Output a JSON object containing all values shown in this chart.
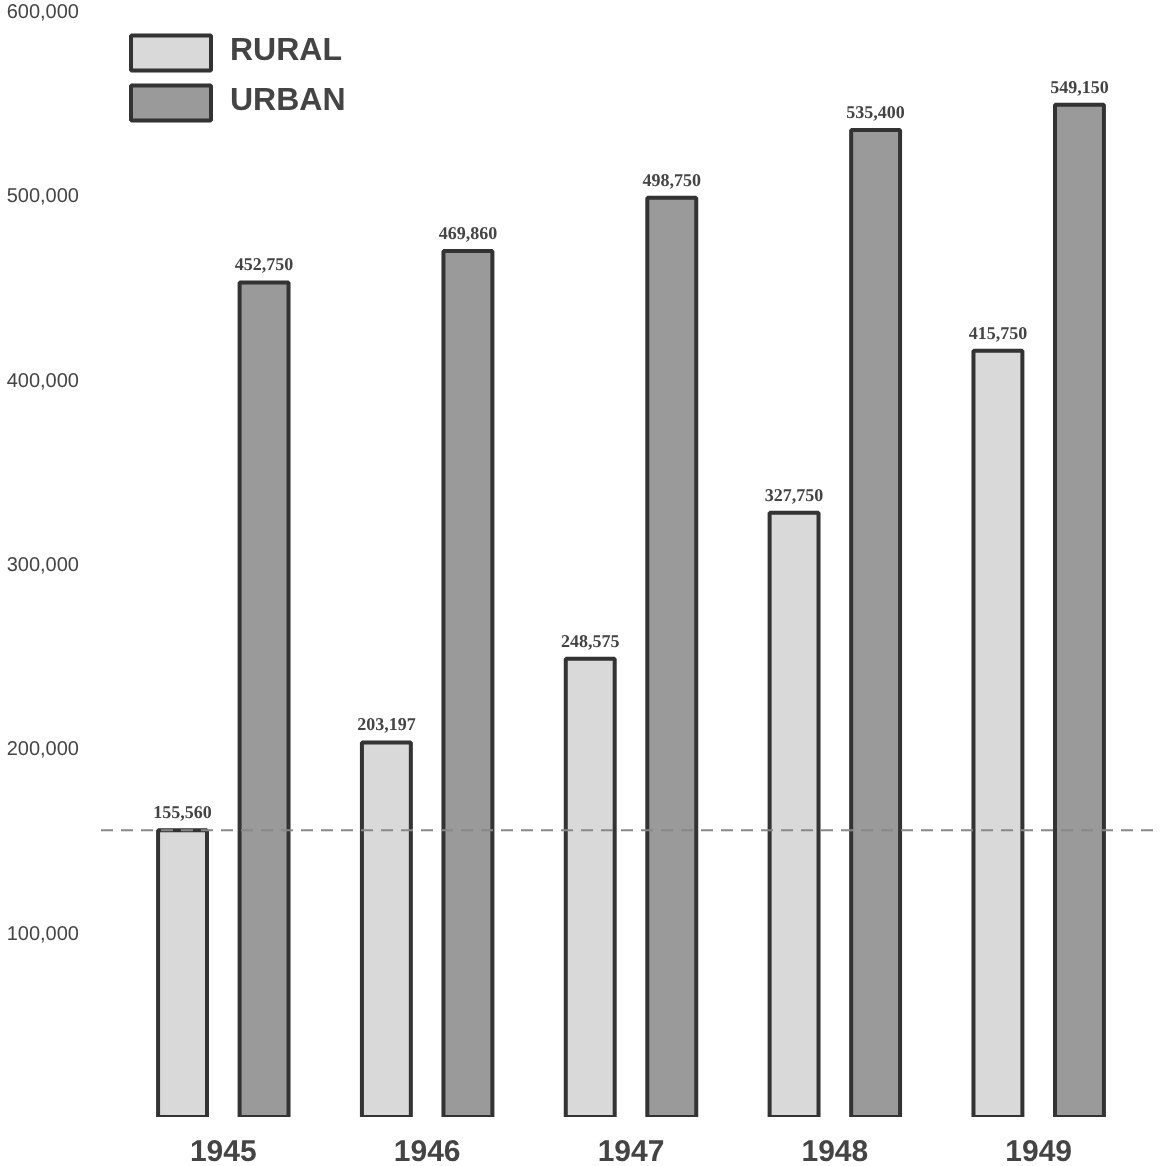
{
  "chart_data": {
    "type": "bar",
    "categories": [
      "1945",
      "1946",
      "1947",
      "1948",
      "1949"
    ],
    "series": [
      {
        "name": "RURAL",
        "color": "#d9d9d9",
        "values": [
          155560,
          203197,
          248575,
          327750,
          415750
        ],
        "value_labels": [
          "155,560",
          "203,197",
          "248,575",
          "327,750",
          "415,750"
        ]
      },
      {
        "name": "URBAN",
        "color": "#9a9a9a",
        "values": [
          452750,
          469860,
          498750,
          535400,
          549150
        ],
        "value_labels": [
          "452,750",
          "469,860",
          "498,750",
          "535,400",
          "549,150"
        ]
      }
    ],
    "ylim": [
      0,
      600000
    ],
    "yticks": [
      {
        "value": 100000,
        "label": "100,000"
      },
      {
        "value": 200000,
        "label": "200,000"
      },
      {
        "value": 300000,
        "label": "300,000"
      },
      {
        "value": 400000,
        "label": "400,000"
      },
      {
        "value": 500000,
        "label": "500,000"
      },
      {
        "value": 600000,
        "label": "600,000"
      }
    ],
    "ref_lines": [
      {
        "axis": "y",
        "value": 155560,
        "label": null,
        "color": "#888888",
        "line_style": "dashed"
      }
    ],
    "grid": false,
    "legend": "top left"
  }
}
